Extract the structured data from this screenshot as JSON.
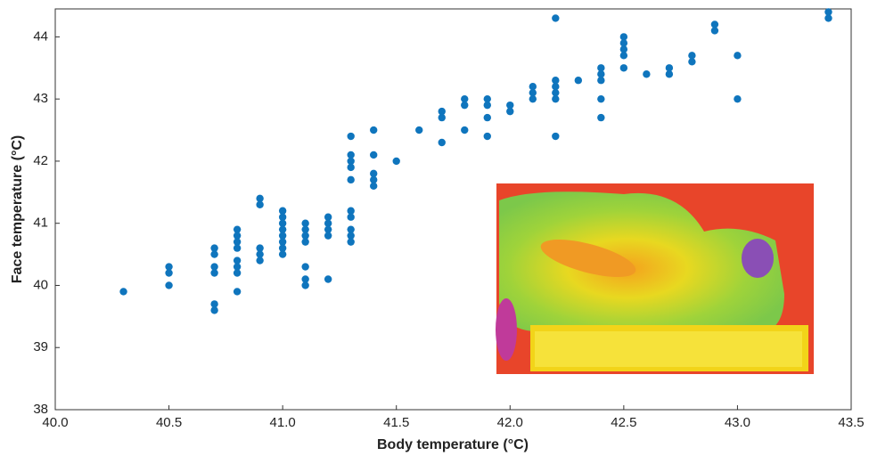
{
  "chart_data": {
    "type": "scatter",
    "xlabel": "Body temperature (°C)",
    "ylabel": "Face temperature (°C)",
    "color": "#0f75bd",
    "x": [
      40.3,
      40.5,
      40.5,
      40.5,
      40.7,
      40.7,
      40.7,
      40.7,
      40.7,
      40.7,
      40.8,
      40.8,
      40.8,
      40.8,
      40.8,
      40.8,
      40.8,
      40.8,
      40.9,
      40.9,
      40.9,
      40.9,
      40.9,
      41.0,
      41.0,
      41.0,
      41.0,
      41.0,
      41.0,
      41.0,
      41.0,
      41.1,
      41.1,
      41.1,
      41.1,
      41.1,
      41.1,
      41.1,
      41.2,
      41.2,
      41.2,
      41.2,
      41.2,
      41.3,
      41.3,
      41.3,
      41.3,
      41.3,
      41.3,
      41.3,
      41.3,
      41.3,
      41.3,
      41.4,
      41.4,
      41.4,
      41.4,
      41.4,
      41.5,
      41.6,
      41.7,
      41.7,
      41.7,
      41.8,
      41.8,
      41.8,
      41.9,
      41.9,
      41.9,
      41.9,
      42.0,
      42.0,
      42.1,
      42.1,
      42.1,
      42.2,
      42.2,
      42.2,
      42.2,
      42.2,
      42.2,
      42.3,
      42.4,
      42.4,
      42.4,
      42.4,
      42.4,
      42.5,
      42.5,
      42.5,
      42.5,
      42.5,
      42.6,
      42.7,
      42.7,
      42.8,
      42.8,
      42.9,
      42.9,
      43.0,
      43.0,
      43.4,
      43.4
    ],
    "y": [
      39.9,
      40.3,
      40.2,
      40.0,
      40.6,
      40.5,
      40.3,
      40.2,
      39.7,
      39.6,
      40.9,
      40.8,
      40.7,
      40.6,
      40.4,
      40.3,
      40.2,
      39.9,
      41.4,
      41.3,
      40.6,
      40.5,
      40.4,
      41.2,
      41.1,
      41.0,
      40.9,
      40.8,
      40.7,
      40.6,
      40.5,
      41.0,
      40.9,
      40.8,
      40.7,
      40.3,
      40.1,
      40.0,
      41.1,
      41.0,
      40.9,
      40.8,
      40.1,
      42.4,
      42.1,
      42.0,
      41.9,
      41.7,
      41.2,
      41.1,
      40.9,
      40.8,
      40.7,
      42.5,
      42.1,
      41.8,
      41.7,
      41.6,
      42.0,
      42.5,
      42.8,
      42.7,
      42.3,
      43.0,
      42.9,
      42.5,
      43.0,
      42.9,
      42.7,
      42.4,
      42.9,
      42.8,
      43.2,
      43.1,
      43.0,
      44.3,
      43.3,
      43.2,
      43.1,
      43.0,
      42.4,
      43.3,
      43.5,
      43.4,
      43.3,
      43.0,
      42.7,
      44.0,
      43.9,
      43.8,
      43.7,
      43.5,
      43.4,
      43.5,
      43.4,
      43.7,
      43.6,
      44.2,
      44.1,
      43.7,
      43.0,
      44.4,
      44.3
    ],
    "xlim": [
      40.0,
      43.5
    ],
    "ylim": [
      38,
      44.45
    ],
    "xticks": [
      {
        "value": 40.0,
        "label": "40.0"
      },
      40.5,
      {
        "value": 41.0,
        "label": "41.0"
      },
      41.5,
      {
        "value": 42.0,
        "label": "42.0"
      },
      42.5,
      {
        "value": 43.0,
        "label": "43.0"
      },
      43.5
    ],
    "yticks": [
      38,
      39,
      40,
      41,
      42,
      43,
      44
    ]
  }
}
